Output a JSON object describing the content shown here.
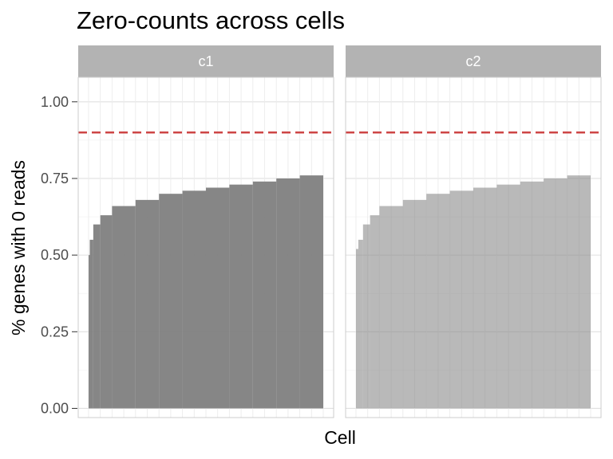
{
  "chart_data": {
    "type": "bar",
    "title": "Zero-counts across cells",
    "xlabel": "Cell",
    "ylabel": "% genes with 0 reads",
    "ylim": [
      -0.03,
      1.08
    ],
    "yticks": [
      0.0,
      0.25,
      0.5,
      0.75,
      1.0
    ],
    "ytick_labels": [
      "0.00",
      "0.25",
      "0.50",
      "0.75",
      "1.00"
    ],
    "reference_line": {
      "y": 0.9,
      "style": "dashed",
      "color": "#cd4646"
    },
    "bar_color": "#7f7f7f",
    "grid": true,
    "facets": [
      {
        "label": "c1",
        "bars": [
          {
            "start": 0.0,
            "end": 0.005,
            "y": 0.5
          },
          {
            "start": 0.005,
            "end": 0.02,
            "y": 0.55
          },
          {
            "start": 0.02,
            "end": 0.05,
            "y": 0.6
          },
          {
            "start": 0.05,
            "end": 0.1,
            "y": 0.63
          },
          {
            "start": 0.1,
            "end": 0.2,
            "y": 0.66
          },
          {
            "start": 0.2,
            "end": 0.3,
            "y": 0.68
          },
          {
            "start": 0.3,
            "end": 0.4,
            "y": 0.7
          },
          {
            "start": 0.4,
            "end": 0.5,
            "y": 0.71
          },
          {
            "start": 0.5,
            "end": 0.6,
            "y": 0.72
          },
          {
            "start": 0.6,
            "end": 0.7,
            "y": 0.73
          },
          {
            "start": 0.7,
            "end": 0.8,
            "y": 0.74
          },
          {
            "start": 0.8,
            "end": 0.9,
            "y": 0.75
          },
          {
            "start": 0.9,
            "end": 1.0,
            "y": 0.76
          }
        ]
      },
      {
        "label": "c2",
        "bars": [
          {
            "start": 0.0,
            "end": 0.01,
            "y": 0.52
          },
          {
            "start": 0.01,
            "end": 0.03,
            "y": 0.55
          },
          {
            "start": 0.03,
            "end": 0.06,
            "y": 0.6
          },
          {
            "start": 0.06,
            "end": 0.1,
            "y": 0.63
          },
          {
            "start": 0.1,
            "end": 0.2,
            "y": 0.66
          },
          {
            "start": 0.2,
            "end": 0.3,
            "y": 0.68
          },
          {
            "start": 0.3,
            "end": 0.4,
            "y": 0.7
          },
          {
            "start": 0.4,
            "end": 0.5,
            "y": 0.71
          },
          {
            "start": 0.5,
            "end": 0.6,
            "y": 0.72
          },
          {
            "start": 0.6,
            "end": 0.7,
            "y": 0.73
          },
          {
            "start": 0.7,
            "end": 0.8,
            "y": 0.74
          },
          {
            "start": 0.8,
            "end": 0.9,
            "y": 0.75
          },
          {
            "start": 0.9,
            "end": 1.0,
            "y": 0.76
          }
        ]
      }
    ]
  }
}
